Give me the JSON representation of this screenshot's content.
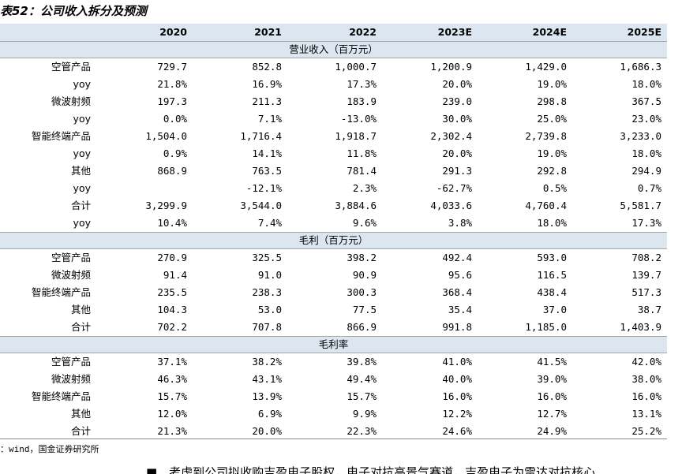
{
  "title": "表52：公司收入拆分及预测",
  "table": {
    "columns": [
      "2020",
      "2021",
      "2022",
      "2023E",
      "2024E",
      "2025E"
    ],
    "sections": [
      {
        "title": "营业收入（百万元）",
        "rows": [
          [
            "空管产品",
            "729.7",
            "852.8",
            "1,000.7",
            "1,200.9",
            "1,429.0",
            "1,686.3"
          ],
          [
            "yoy",
            "21.8%",
            "16.9%",
            "17.3%",
            "20.0%",
            "19.0%",
            "18.0%"
          ],
          [
            "微波射频",
            "197.3",
            "211.3",
            "183.9",
            "239.0",
            "298.8",
            "367.5"
          ],
          [
            "yoy",
            "0.0%",
            "7.1%",
            "-13.0%",
            "30.0%",
            "25.0%",
            "23.0%"
          ],
          [
            "智能终端产品",
            "1,504.0",
            "1,716.4",
            "1,918.7",
            "2,302.4",
            "2,739.8",
            "3,233.0"
          ],
          [
            "yoy",
            "0.9%",
            "14.1%",
            "11.8%",
            "20.0%",
            "19.0%",
            "18.0%"
          ],
          [
            "其他",
            "868.9",
            "763.5",
            "781.4",
            "291.3",
            "292.8",
            "294.9"
          ],
          [
            "yoy",
            null,
            "-12.1%",
            "2.3%",
            "-62.7%",
            "0.5%",
            "0.7%"
          ],
          [
            "合计",
            "3,299.9",
            "3,544.0",
            "3,884.6",
            "4,033.6",
            "4,760.4",
            "5,581.7"
          ],
          [
            "yoy",
            "10.4%",
            "7.4%",
            "9.6%",
            "3.8%",
            "18.0%",
            "17.3%"
          ]
        ]
      },
      {
        "title": "毛利（百万元）",
        "rows": [
          [
            "空管产品",
            "270.9",
            "325.5",
            "398.2",
            "492.4",
            "593.0",
            "708.2"
          ],
          [
            "微波射频",
            "91.4",
            "91.0",
            "90.9",
            "95.6",
            "116.5",
            "139.7"
          ],
          [
            "智能终端产品",
            "235.5",
            "238.3",
            "300.3",
            "368.4",
            "438.4",
            "517.3"
          ],
          [
            "其他",
            "104.3",
            "53.0",
            "77.5",
            "35.4",
            "37.0",
            "38.7"
          ],
          [
            "合计",
            "702.2",
            "707.8",
            "866.9",
            "991.8",
            "1,185.0",
            "1,403.9"
          ]
        ]
      },
      {
        "title": "毛利率",
        "rows": [
          [
            "空管产品",
            "37.1%",
            "38.2%",
            "39.8%",
            "41.0%",
            "41.5%",
            "42.0%"
          ],
          [
            "微波射频",
            "46.3%",
            "43.1%",
            "49.4%",
            "40.0%",
            "39.0%",
            "38.0%"
          ],
          [
            "智能终端产品",
            "15.7%",
            "13.9%",
            "15.7%",
            "16.0%",
            "16.0%",
            "16.0%"
          ],
          [
            "其他",
            "12.0%",
            "6.9%",
            "9.9%",
            "12.2%",
            "12.7%",
            "13.1%"
          ],
          [
            "合计",
            "21.3%",
            "20.0%",
            "22.3%",
            "24.6%",
            "24.9%",
            "25.2%"
          ]
        ]
      }
    ]
  },
  "source": "：wind，国金证券研究所",
  "footer_text": "■　考虑到公司拟收购吉盈电子股权，电子对抗高景气赛道，吉盈电子为雷达对抗核心"
}
